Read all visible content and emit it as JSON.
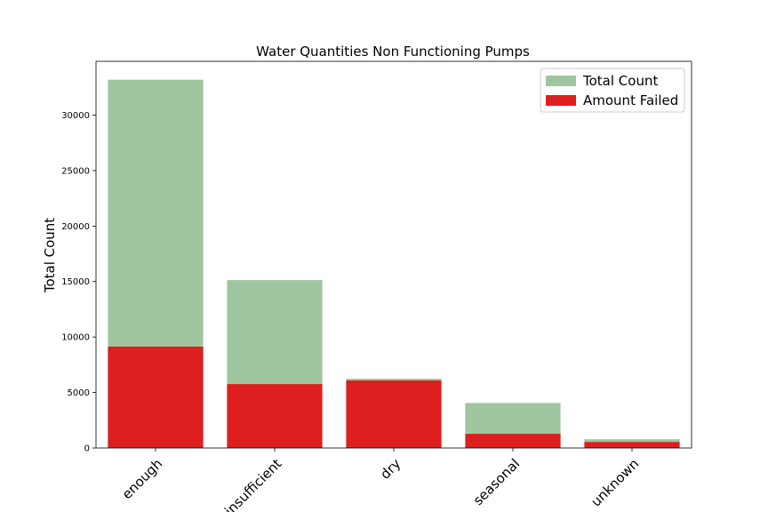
{
  "chart_data": {
    "type": "bar",
    "title": "Water Quantities Non Functioning Pumps",
    "xlabel": "",
    "ylabel": "Total Count",
    "categories": [
      "enough",
      "insufficient",
      "dry",
      "seasonal",
      "unknown"
    ],
    "series": [
      {
        "name": "Total Count",
        "color": "#9fc69e",
        "values": [
          33186,
          15129,
          6246,
          4050,
          789
        ]
      },
      {
        "name": "Amount Failed",
        "color": "#de1f1f",
        "values": [
          9138,
          5758,
          6084,
          1275,
          541
        ]
      }
    ],
    "overlay": true,
    "ylim": [
      0,
      34843
    ],
    "yticks": [
      0,
      5000,
      10000,
      15000,
      20000,
      25000,
      30000
    ],
    "legend_position": "top-right",
    "grid": false
  }
}
